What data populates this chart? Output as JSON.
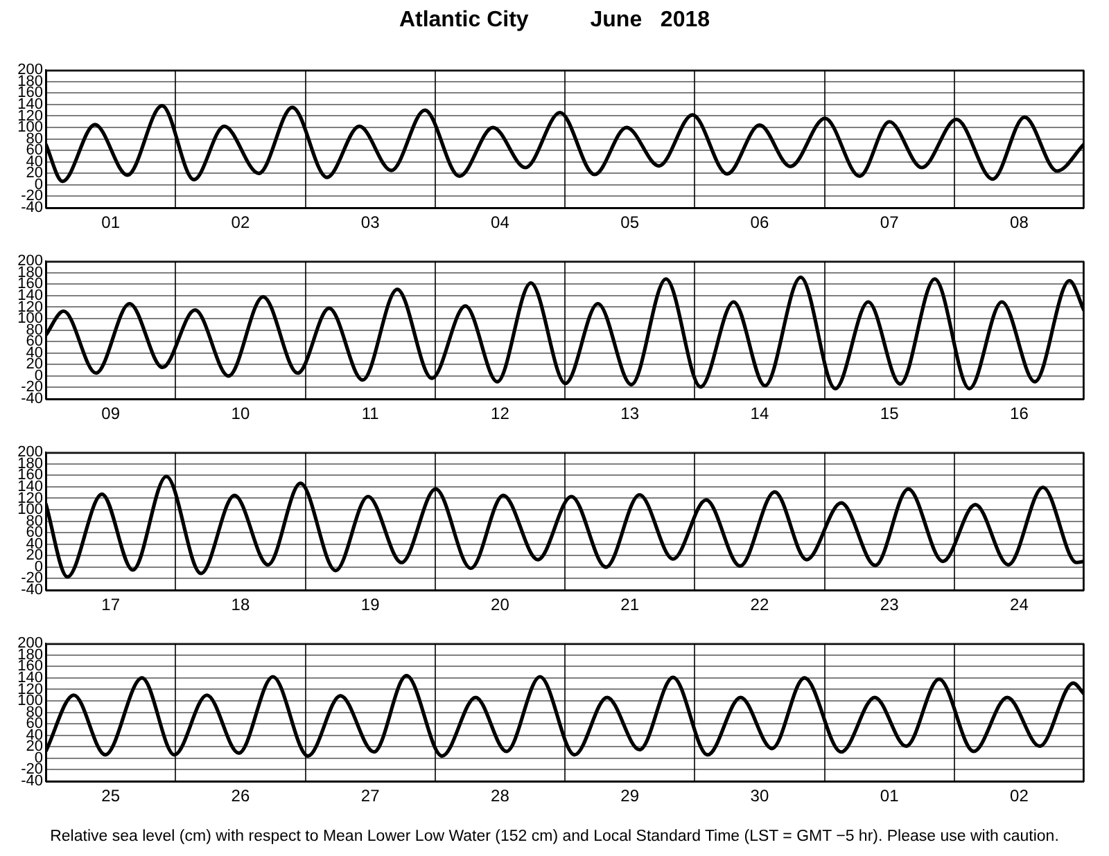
{
  "chart_data": [
    {
      "type": "line",
      "title": "Atlantic City          June   2018",
      "x": [
        "2018-06-01T00:00",
        "2018-06-01T03:06",
        "2018-06-01T09:06",
        "2018-06-01T15:06",
        "2018-06-01T21:30",
        "2018-06-02T03:24",
        "2018-06-02T09:00",
        "2018-06-02T15:24",
        "2018-06-02T21:36",
        "2018-06-03T04:00",
        "2018-06-03T10:00",
        "2018-06-03T15:54",
        "2018-06-03T22:06",
        "2018-06-04T04:30",
        "2018-06-04T10:42",
        "2018-06-04T16:42",
        "2018-06-04T23:06",
        "2018-06-05T05:30",
        "2018-06-05T11:24",
        "2018-06-05T17:24",
        "2018-06-05T23:36",
        "2018-06-06T06:00",
        "2018-06-06T12:00",
        "2018-06-06T17:42",
        "2018-06-07T00:06",
        "2018-06-07T06:30",
        "2018-06-07T12:00",
        "2018-06-07T18:00",
        "2018-06-08T00:24",
        "2018-06-08T07:06",
        "2018-06-08T13:00",
        "2018-06-08T19:00",
        "2018-06-09T00:00"
      ],
      "series": [
        {
          "color": "#000000",
          "values": [
            71,
            6,
            105,
            17,
            138,
            9,
            102,
            20,
            135,
            13,
            102,
            25,
            130,
            15,
            100,
            30,
            126,
            18,
            100,
            33,
            122,
            19,
            104,
            32,
            116,
            15,
            110,
            30,
            114,
            10,
            118,
            24,
            71
          ]
        }
      ],
      "xlim": [
        "2018-06-01T00:00",
        "2018-06-09T00:00"
      ],
      "xticks": [
        {
          "value": "2018-06-01T00:00",
          "label": null
        },
        {
          "value": "2018-06-01T12:00",
          "label": "01"
        },
        {
          "value": "2018-06-02T00:00",
          "label": null
        },
        {
          "value": "2018-06-02T12:00",
          "label": "02"
        },
        {
          "value": "2018-06-03T00:00",
          "label": null
        },
        {
          "value": "2018-06-03T12:00",
          "label": "03"
        },
        {
          "value": "2018-06-04T00:00",
          "label": null
        },
        {
          "value": "2018-06-04T12:00",
          "label": "04"
        },
        {
          "value": "2018-06-05T00:00",
          "label": null
        },
        {
          "value": "2018-06-05T12:00",
          "label": "05"
        },
        {
          "value": "2018-06-06T00:00",
          "label": null
        },
        {
          "value": "2018-06-06T12:00",
          "label": "06"
        },
        {
          "value": "2018-06-07T00:00",
          "label": null
        },
        {
          "value": "2018-06-07T12:00",
          "label": "07"
        },
        {
          "value": "2018-06-08T00:00",
          "label": null
        },
        {
          "value": "2018-06-08T12:00",
          "label": "08"
        },
        {
          "value": "2018-06-09T00:00",
          "label": null
        }
      ],
      "ylim": [
        -40,
        200
      ],
      "yticks": [
        -40,
        -20,
        0,
        20,
        40,
        60,
        80,
        100,
        120,
        140,
        160,
        180,
        200
      ],
      "grid": true,
      "legend": false
    },
    {
      "type": "line",
      "x": [
        "2018-06-09T00:00",
        "2018-06-09T03:18",
        "2018-06-09T09:18",
        "2018-06-09T15:30",
        "2018-06-09T21:36",
        "2018-06-10T03:36",
        "2018-06-10T09:48",
        "2018-06-10T16:12",
        "2018-06-10T22:36",
        "2018-06-11T04:24",
        "2018-06-11T10:36",
        "2018-06-11T17:00",
        "2018-06-11T23:24",
        "2018-06-12T05:36",
        "2018-06-12T11:30",
        "2018-06-12T17:42",
        "2018-06-13T00:06",
        "2018-06-13T06:06",
        "2018-06-13T12:18",
        "2018-06-13T18:42",
        "2018-06-14T01:06",
        "2018-06-14T07:12",
        "2018-06-14T13:00",
        "2018-06-14T19:36",
        "2018-06-15T02:00",
        "2018-06-15T08:06",
        "2018-06-15T14:00",
        "2018-06-15T20:24",
        "2018-06-16T02:48",
        "2018-06-16T08:48",
        "2018-06-16T14:54",
        "2018-06-16T21:18",
        "2018-06-17T00:00"
      ],
      "series": [
        {
          "color": "#000000",
          "values": [
            71,
            113,
            5,
            126,
            15,
            115,
            0,
            138,
            5,
            118,
            -7,
            151,
            -4,
            122,
            -10,
            162,
            -13,
            126,
            -15,
            169,
            -19,
            129,
            -17,
            172,
            -22,
            129,
            -14,
            169,
            -22,
            129,
            -10,
            166,
            114
          ]
        }
      ],
      "xlim": [
        "2018-06-09T00:00",
        "2018-06-17T00:00"
      ],
      "xticks": [
        {
          "value": "2018-06-09T00:00",
          "label": null
        },
        {
          "value": "2018-06-09T12:00",
          "label": "09"
        },
        {
          "value": "2018-06-10T00:00",
          "label": null
        },
        {
          "value": "2018-06-10T12:00",
          "label": "10"
        },
        {
          "value": "2018-06-11T00:00",
          "label": null
        },
        {
          "value": "2018-06-11T12:00",
          "label": "11"
        },
        {
          "value": "2018-06-12T00:00",
          "label": null
        },
        {
          "value": "2018-06-12T12:00",
          "label": "12"
        },
        {
          "value": "2018-06-13T00:00",
          "label": null
        },
        {
          "value": "2018-06-13T12:00",
          "label": "13"
        },
        {
          "value": "2018-06-14T00:00",
          "label": null
        },
        {
          "value": "2018-06-14T12:00",
          "label": "14"
        },
        {
          "value": "2018-06-15T00:00",
          "label": null
        },
        {
          "value": "2018-06-15T12:00",
          "label": "15"
        },
        {
          "value": "2018-06-16T00:00",
          "label": null
        },
        {
          "value": "2018-06-16T12:00",
          "label": "16"
        },
        {
          "value": "2018-06-17T00:00",
          "label": null
        }
      ],
      "ylim": [
        -40,
        200
      ],
      "yticks": [
        -40,
        -20,
        0,
        20,
        40,
        60,
        80,
        100,
        120,
        140,
        160,
        180,
        200
      ],
      "grid": true,
      "legend": false
    },
    {
      "type": "line",
      "x": [
        "2018-06-17T00:00",
        "2018-06-17T04:00",
        "2018-06-17T10:24",
        "2018-06-17T16:06",
        "2018-06-17T22:18",
        "2018-06-18T04:42",
        "2018-06-18T10:54",
        "2018-06-18T17:06",
        "2018-06-18T23:06",
        "2018-06-19T05:36",
        "2018-06-19T11:36",
        "2018-06-19T17:48",
        "2018-06-20T00:06",
        "2018-06-20T06:36",
        "2018-06-20T12:36",
        "2018-06-20T19:00",
        "2018-06-21T01:12",
        "2018-06-21T07:36",
        "2018-06-21T13:48",
        "2018-06-21T20:00",
        "2018-06-22T02:06",
        "2018-06-22T08:24",
        "2018-06-22T14:48",
        "2018-06-22T20:42",
        "2018-06-23T03:06",
        "2018-06-23T09:24",
        "2018-06-23T15:30",
        "2018-06-23T21:54",
        "2018-06-24T03:54",
        "2018-06-24T10:00",
        "2018-06-24T16:24",
        "2018-06-24T22:36",
        "2018-06-25T00:00"
      ],
      "series": [
        {
          "color": "#000000",
          "values": [
            111,
            -17,
            127,
            -5,
            158,
            -11,
            125,
            4,
            146,
            -6,
            123,
            8,
            136,
            -2,
            125,
            13,
            123,
            0,
            126,
            14,
            117,
            2,
            131,
            13,
            112,
            3,
            136,
            10,
            109,
            4,
            139,
            8,
            10
          ]
        }
      ],
      "xlim": [
        "2018-06-17T00:00",
        "2018-06-25T00:00"
      ],
      "xticks": [
        {
          "value": "2018-06-17T00:00",
          "label": null
        },
        {
          "value": "2018-06-17T12:00",
          "label": "17"
        },
        {
          "value": "2018-06-18T00:00",
          "label": null
        },
        {
          "value": "2018-06-18T12:00",
          "label": "18"
        },
        {
          "value": "2018-06-19T00:00",
          "label": null
        },
        {
          "value": "2018-06-19T12:00",
          "label": "19"
        },
        {
          "value": "2018-06-20T00:00",
          "label": null
        },
        {
          "value": "2018-06-20T12:00",
          "label": "20"
        },
        {
          "value": "2018-06-21T00:00",
          "label": null
        },
        {
          "value": "2018-06-21T12:00",
          "label": "21"
        },
        {
          "value": "2018-06-22T00:00",
          "label": null
        },
        {
          "value": "2018-06-22T12:00",
          "label": "22"
        },
        {
          "value": "2018-06-23T00:00",
          "label": null
        },
        {
          "value": "2018-06-23T12:00",
          "label": "23"
        },
        {
          "value": "2018-06-24T00:00",
          "label": null
        },
        {
          "value": "2018-06-24T12:00",
          "label": "24"
        },
        {
          "value": "2018-06-25T00:00",
          "label": null
        }
      ],
      "ylim": [
        -40,
        200
      ],
      "yticks": [
        -40,
        -20,
        0,
        20,
        40,
        60,
        80,
        100,
        120,
        140,
        160,
        180,
        200
      ],
      "grid": true,
      "legend": false
    },
    {
      "type": "line",
      "x": [
        "2018-06-25T00:00",
        "2018-06-25T05:12",
        "2018-06-25T11:00",
        "2018-06-25T17:48",
        "2018-06-25T23:48",
        "2018-06-26T05:48",
        "2018-06-26T11:42",
        "2018-06-26T18:00",
        "2018-06-27T00:30",
        "2018-06-27T06:30",
        "2018-06-27T12:42",
        "2018-06-27T18:42",
        "2018-06-28T01:18",
        "2018-06-28T07:30",
        "2018-06-28T13:12",
        "2018-06-28T19:24",
        "2018-06-29T01:48",
        "2018-06-29T07:48",
        "2018-06-29T13:48",
        "2018-06-29T20:00",
        "2018-06-30T02:24",
        "2018-06-30T08:30",
        "2018-06-30T14:18",
        "2018-06-30T20:18",
        "2018-07-01T03:06",
        "2018-07-01T09:18",
        "2018-07-01T15:06",
        "2018-07-01T21:12",
        "2018-07-02T03:36",
        "2018-07-02T09:48",
        "2018-07-02T15:48",
        "2018-07-02T22:00",
        "2018-07-03T00:00"
      ],
      "series": [
        {
          "color": "#000000",
          "values": [
            12,
            110,
            6,
            140,
            6,
            110,
            9,
            142,
            4,
            109,
            11,
            144,
            4,
            106,
            12,
            142,
            6,
            106,
            15,
            141,
            6,
            106,
            17,
            140,
            11,
            106,
            21,
            138,
            12,
            106,
            21,
            131,
            112
          ]
        }
      ],
      "xlim": [
        "2018-06-25T00:00",
        "2018-07-03T00:00"
      ],
      "xticks": [
        {
          "value": "2018-06-25T00:00",
          "label": null
        },
        {
          "value": "2018-06-25T12:00",
          "label": "25"
        },
        {
          "value": "2018-06-26T00:00",
          "label": null
        },
        {
          "value": "2018-06-26T12:00",
          "label": "26"
        },
        {
          "value": "2018-06-27T00:00",
          "label": null
        },
        {
          "value": "2018-06-27T12:00",
          "label": "27"
        },
        {
          "value": "2018-06-28T00:00",
          "label": null
        },
        {
          "value": "2018-06-28T12:00",
          "label": "28"
        },
        {
          "value": "2018-06-29T00:00",
          "label": null
        },
        {
          "value": "2018-06-29T12:00",
          "label": "29"
        },
        {
          "value": "2018-06-30T00:00",
          "label": null
        },
        {
          "value": "2018-06-30T12:00",
          "label": "30"
        },
        {
          "value": "2018-07-01T00:00",
          "label": null
        },
        {
          "value": "2018-07-01T12:00",
          "label": "01"
        },
        {
          "value": "2018-07-02T00:00",
          "label": null
        },
        {
          "value": "2018-07-02T12:00",
          "label": "02"
        },
        {
          "value": "2018-07-03T00:00",
          "label": null
        }
      ],
      "ylim": [
        -40,
        200
      ],
      "yticks": [
        -40,
        -20,
        0,
        20,
        40,
        60,
        80,
        100,
        120,
        140,
        160,
        180,
        200
      ],
      "grid": true,
      "legend": false,
      "annotations": [
        "Relative sea level (cm) with respect to Mean Lower Low Water (152 cm) and Local Standard Time (LST = GMT −5 hr). Please use with caution."
      ]
    }
  ]
}
